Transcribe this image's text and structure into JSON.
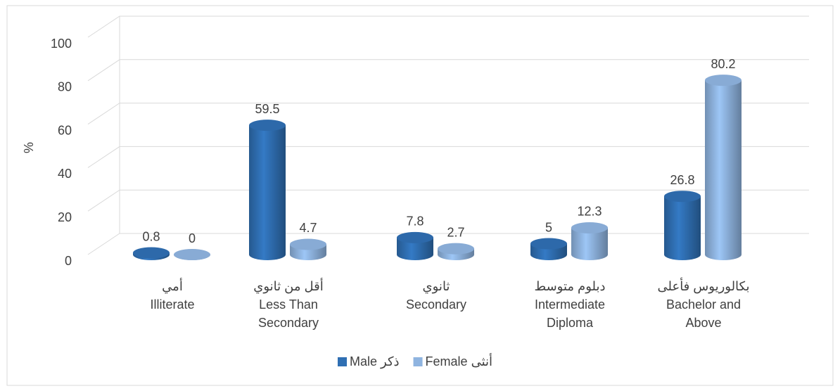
{
  "chart_data": {
    "type": "bar",
    "y_label": "%",
    "categories": [
      [
        "أمي",
        "Illiterate"
      ],
      [
        "أقل من ثانوي",
        "Less Than",
        "Secondary"
      ],
      [
        "ثانوي",
        "Secondary"
      ],
      [
        "دبلوم متوسط",
        "Intermediate",
        "Diploma"
      ],
      [
        "بكالوريوس فأعلى",
        "Bachelor and",
        "Above"
      ]
    ],
    "series": [
      {
        "name": "Male ذكر",
        "color": "#2f6fb3",
        "values": [
          0.8,
          59.5,
          7.8,
          5,
          26.8
        ]
      },
      {
        "name": "Female أنثى",
        "color": "#8fb4e0",
        "values": [
          0,
          4.7,
          2.7,
          12.3,
          80.2
        ]
      }
    ],
    "ylim": [
      0,
      100
    ],
    "yticks": [
      0,
      20,
      40,
      60,
      80,
      100
    ],
    "grid": true,
    "legend": "bottom"
  }
}
